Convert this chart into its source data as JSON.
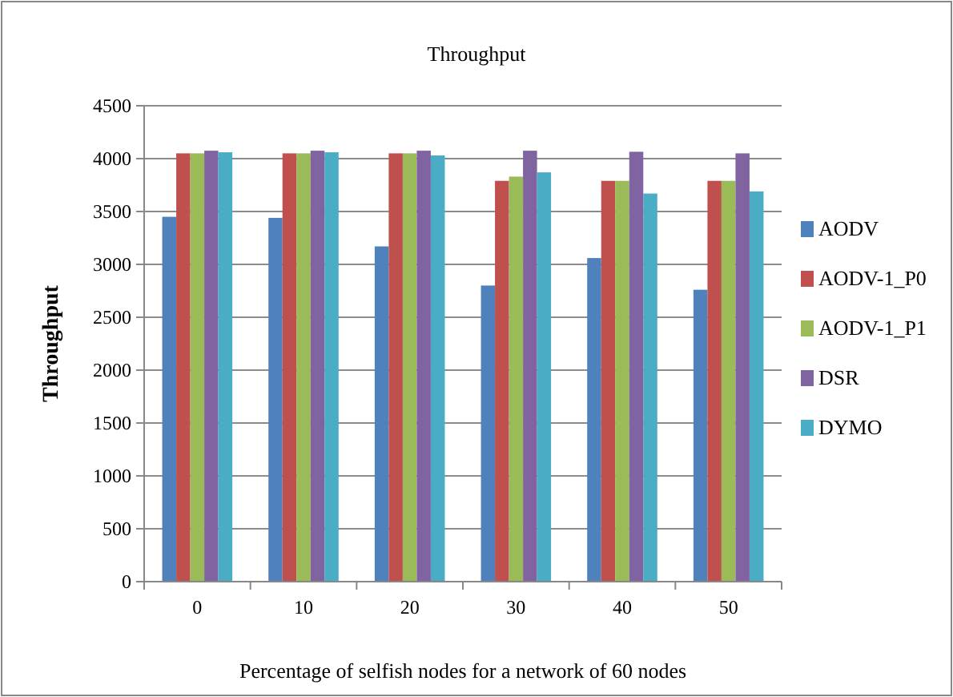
{
  "chart_data": {
    "type": "bar",
    "title": "Throughput",
    "xlabel": "Percentage of selfish nodes for  a network of  60 nodes",
    "ylabel": "Throughput",
    "categories": [
      "0",
      "10",
      "20",
      "30",
      "40",
      "50"
    ],
    "series": [
      {
        "name": "AODV",
        "color": "#4f81bd",
        "values": [
          3450,
          3440,
          3170,
          2800,
          3060,
          2760
        ]
      },
      {
        "name": "AODV-1_P0",
        "color": "#c0504d",
        "values": [
          4050,
          4050,
          4050,
          3790,
          3790,
          3790
        ]
      },
      {
        "name": "AODV-1_P1",
        "color": "#9bbb59",
        "values": [
          4050,
          4050,
          4050,
          3830,
          3790,
          3790
        ]
      },
      {
        "name": "DSR",
        "color": "#8064a2",
        "values": [
          4075,
          4075,
          4075,
          4075,
          4065,
          4050
        ]
      },
      {
        "name": "DYMO",
        "color": "#4bacc6",
        "values": [
          4060,
          4060,
          4030,
          3870,
          3670,
          3690
        ]
      }
    ],
    "ylim": [
      0,
      4500
    ],
    "yticks": [
      0,
      500,
      1000,
      1500,
      2000,
      2500,
      3000,
      3500,
      4000,
      4500
    ],
    "grid": "y",
    "legend": "right"
  }
}
